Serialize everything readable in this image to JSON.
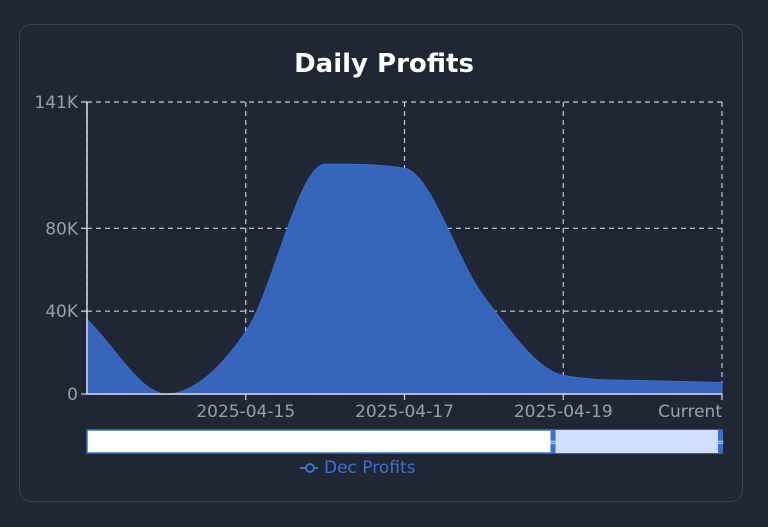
{
  "chart_data": {
    "type": "area",
    "title": "Daily Profits",
    "xlabel": "",
    "ylabel": "",
    "x_tick_labels": [
      "2025-04-15",
      "2025-04-17",
      "2025-04-19",
      "Current"
    ],
    "y_ticks": [
      0,
      40000,
      80000,
      141000
    ],
    "y_tick_labels": [
      "0",
      "40K",
      "80K",
      "141K"
    ],
    "ylim": [
      0,
      141000
    ],
    "grid": true,
    "legend_position": "bottom-center",
    "series": [
      {
        "name": "Dec Profits",
        "color": "#3566bb",
        "points": [
          {
            "x": "2025-04-13",
            "y": 36000
          },
          {
            "x": "2025-04-14",
            "y": 0
          },
          {
            "x": "2025-04-15",
            "y": 30000
          },
          {
            "x": "2025-04-16",
            "y": 111000
          },
          {
            "x": "2025-04-17",
            "y": 109000
          },
          {
            "x": "2025-04-18",
            "y": 47000
          },
          {
            "x": "2025-04-19",
            "y": 9000
          },
          {
            "x": "2025-04-20",
            "y": 6500
          },
          {
            "x": "Current",
            "y": 5500
          }
        ]
      }
    ]
  },
  "zoom_slider": {
    "start": 0,
    "end": 1,
    "handle_glyph": "="
  }
}
